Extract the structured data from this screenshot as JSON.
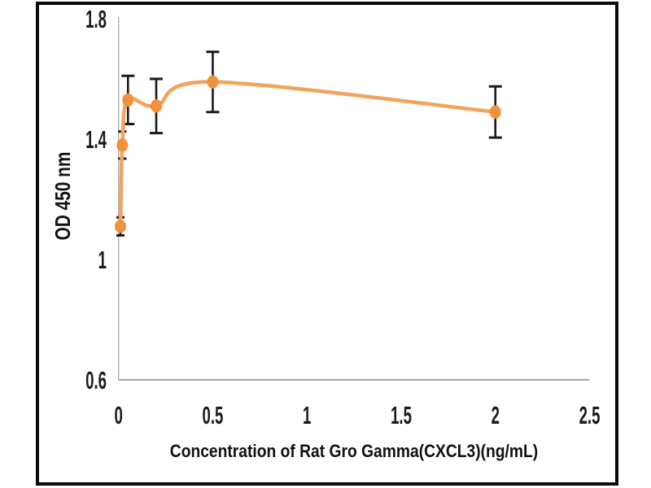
{
  "chart_data": {
    "type": "line",
    "title": "",
    "xlabel": "Concentration of Rat Gro Gamma(CXCL3)(ng/mL)",
    "ylabel": "OD 450 nm",
    "xlim": [
      0,
      2.5
    ],
    "ylim": [
      0.6,
      1.8
    ],
    "x_tick_values": [
      0,
      0.5,
      1,
      1.5,
      2,
      2.5
    ],
    "x_tick_labels": [
      "0",
      "0.5",
      "1",
      "1.5",
      "2",
      "2.5"
    ],
    "y_tick_values": [
      0.6,
      1,
      1.4,
      1.8
    ],
    "y_tick_labels": [
      "0.6",
      "1",
      "1.4",
      "1.8"
    ],
    "grid": false,
    "legend": "none",
    "line_style": "smooth",
    "marker_style": "circle",
    "series": [
      {
        "points": [
          {
            "x": 0.01,
            "y": 1.11,
            "yerr": 0.03
          },
          {
            "x": 0.02,
            "y": 1.38,
            "yerr": 0.045
          },
          {
            "x": 0.05,
            "y": 1.53,
            "yerr": 0.08
          },
          {
            "x": 0.2,
            "y": 1.51,
            "yerr": 0.09
          },
          {
            "x": 0.5,
            "y": 1.59,
            "yerr": 0.1
          },
          {
            "x": 2,
            "y": 1.49,
            "yerr": 0.085
          }
        ]
      }
    ],
    "colors": {
      "line": "#F2A45F",
      "marker": "#F0923C",
      "error_bar": "#1A1A1A",
      "axis_line": "#A8A8A8",
      "tick_text": "#1A1A1A",
      "frame_border": "#0A0A0A",
      "background": "#FFFFFF"
    }
  }
}
